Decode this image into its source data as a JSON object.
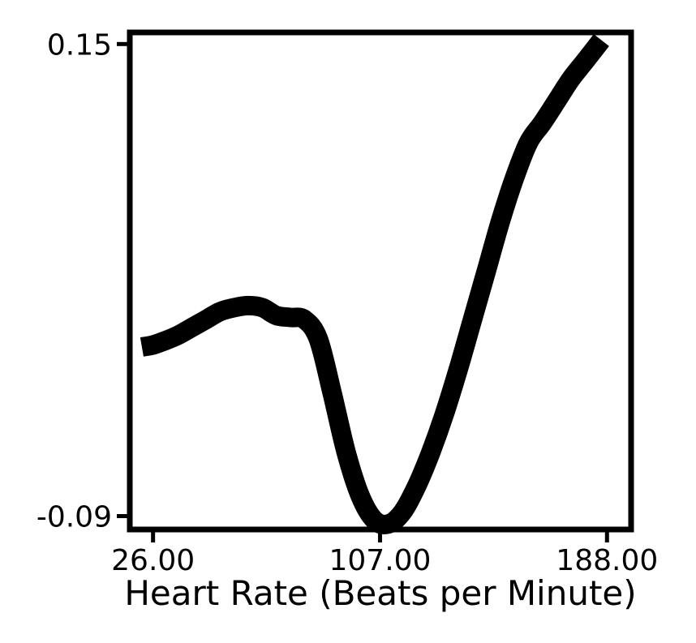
{
  "chart_data": {
    "type": "line",
    "title": "",
    "xlabel": "Heart Rate (Beats per Minute)",
    "ylabel": "",
    "xlim": [
      17.7,
      196.6
    ],
    "ylim": [
      -0.0968,
      0.1559
    ],
    "x_ticks": [
      26.0,
      107.0,
      188.0
    ],
    "x_tick_labels": [
      "26.00",
      "107.00",
      "188.00"
    ],
    "y_ticks": [
      0.15,
      -0.09
    ],
    "y_tick_labels": [
      "0.15",
      "-0.09"
    ],
    "grid": false,
    "series": [
      {
        "color": "#000000",
        "x": [
          22,
          26,
          30,
          35,
          40,
          45,
          50,
          55,
          60,
          65,
          70,
          75,
          80,
          85,
          90,
          95,
          100,
          105,
          110,
          115,
          120,
          125,
          130,
          135,
          140,
          145,
          150,
          155,
          160,
          165,
          170,
          175,
          180,
          186
        ],
        "y": [
          -0.004,
          -0.003,
          -0.001,
          0.002,
          0.006,
          0.01,
          0.014,
          0.016,
          0.017,
          0.016,
          0.012,
          0.011,
          0.01,
          0.0,
          -0.028,
          -0.058,
          -0.08,
          -0.092,
          -0.094,
          -0.088,
          -0.075,
          -0.058,
          -0.038,
          -0.015,
          0.01,
          0.035,
          0.06,
          0.082,
          0.1,
          0.11,
          0.121,
          0.132,
          0.141,
          0.152
        ]
      }
    ]
  }
}
